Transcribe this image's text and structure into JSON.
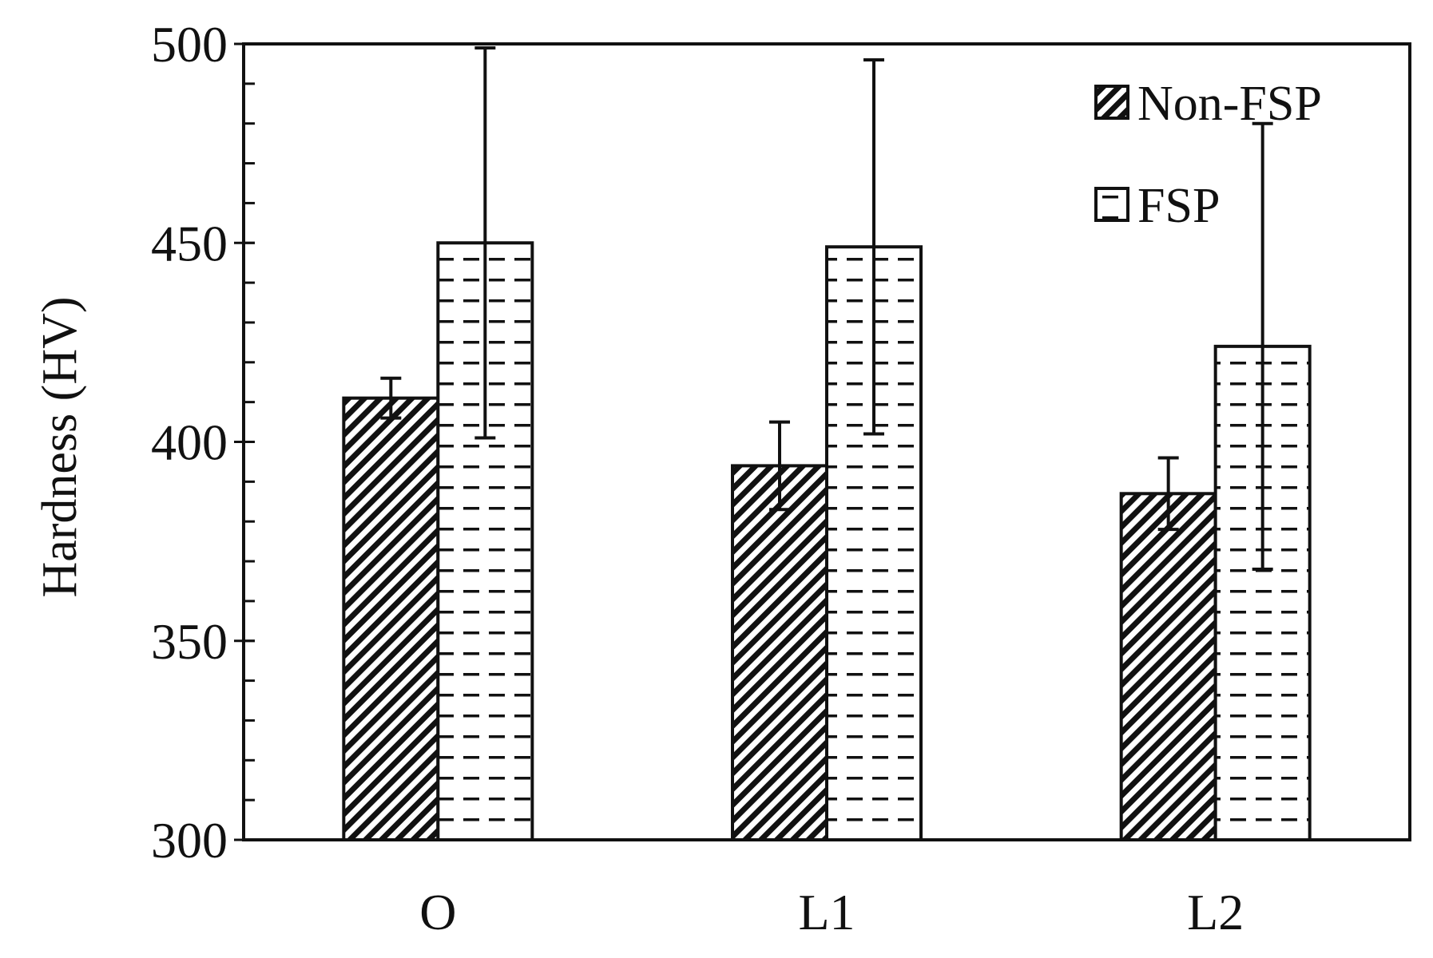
{
  "chart_data": {
    "type": "bar",
    "title": "",
    "xlabel": "",
    "ylabel": "Hardness (HV)",
    "ylim": [
      300,
      500
    ],
    "yticks": [
      300,
      350,
      400,
      450,
      500
    ],
    "minor_tick_step": 10,
    "categories": [
      "O",
      "L1",
      "L2"
    ],
    "series": [
      {
        "name": "Non-FSP",
        "pattern": "diagonal-hatch",
        "values": [
          411,
          394,
          387
        ],
        "error": [
          5,
          11,
          9
        ]
      },
      {
        "name": "FSP",
        "pattern": "dashes",
        "values": [
          450,
          449,
          424
        ],
        "error": [
          49,
          47,
          56
        ]
      }
    ],
    "legend_position": "top-right",
    "grid": false,
    "colors": {
      "ink": "#111111",
      "background": "#ffffff"
    }
  }
}
